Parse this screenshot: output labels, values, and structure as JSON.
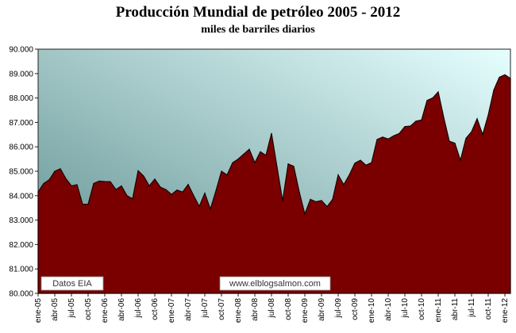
{
  "title": "Producción Mundial de petróleo 2005 - 2012",
  "subtitle": "miles de barriles diarios",
  "source_label": "Datos EIA",
  "website_label": "www.elblogsalmon.com",
  "colors": {
    "area_fill": "#7a0000",
    "area_stroke": "#1a0000",
    "plot_bg_dark": "#5d8c8c",
    "plot_bg_light": "#e6ffff"
  },
  "chart_data": {
    "type": "area",
    "title": "Producción Mundial de petróleo 2005 - 2012",
    "subtitle": "miles de barriles diarios",
    "ylim": [
      80000,
      90000
    ],
    "yticks": [
      "80.000",
      "81.000",
      "82.000",
      "83.000",
      "84.000",
      "85.000",
      "86.000",
      "87.000",
      "88.000",
      "89.000",
      "90.000"
    ],
    "xticks": [
      "ene-05",
      "abr-05",
      "jul-05",
      "oct-05",
      "ene-06",
      "abr-06",
      "jul-06",
      "oct-06",
      "ene-07",
      "abr-07",
      "jul-07",
      "oct-07",
      "ene-08",
      "abr-08",
      "jul-08",
      "oct-08",
      "ene-09",
      "abr-09",
      "jul-09",
      "oct-09",
      "ene-10",
      "abr-10",
      "jul-10",
      "oct-10",
      "ene-11",
      "abr-11",
      "jul-11",
      "oct-11",
      "ene-12"
    ],
    "grid": false,
    "series": [
      {
        "values": [
          84150,
          84500,
          84650,
          85000,
          85100,
          84700,
          84400,
          84450,
          83650,
          83650,
          84500,
          84600,
          84580,
          84570,
          84250,
          84400,
          84000,
          83870,
          85020,
          84800,
          84400,
          84680,
          84350,
          84250,
          84050,
          84230,
          84150,
          84460,
          84000,
          83560,
          84100,
          83450,
          84200,
          85000,
          84850,
          85350,
          85500,
          85700,
          85900,
          85350,
          85800,
          85650,
          86550,
          85170,
          83780,
          85300,
          85200,
          84150,
          83250,
          83850,
          83750,
          83800,
          83550,
          83850,
          84850,
          84450,
          84850,
          85330,
          85450,
          85250,
          85350,
          86300,
          86400,
          86320,
          86450,
          86550,
          86830,
          86850,
          87050,
          87100,
          87900,
          88000,
          88250,
          87200,
          86230,
          86150,
          85450,
          86350,
          86620,
          87150,
          86500,
          87300,
          88320,
          88850,
          88950,
          88800
        ]
      }
    ]
  }
}
